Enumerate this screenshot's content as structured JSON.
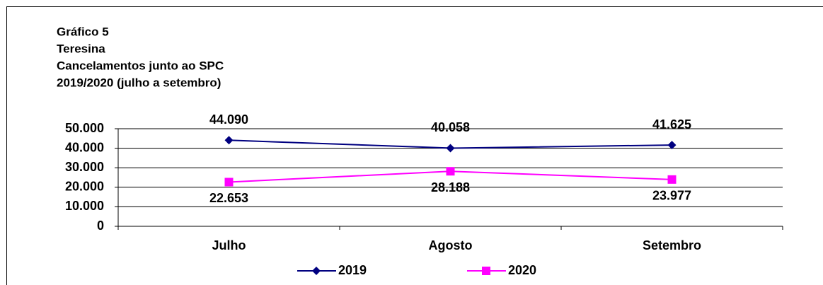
{
  "chart_data": {
    "type": "line",
    "title_lines": [
      "Gráfico 5",
      "Teresina",
      "Cancelamentos junto ao SPC",
      "2019/2020 (julho a setembro)"
    ],
    "categories": [
      "Julho",
      "Agosto",
      "Setembro"
    ],
    "series": [
      {
        "name": "2019",
        "color": "#000080",
        "marker": "diamond",
        "values": [
          44090,
          40058,
          41625
        ],
        "value_labels": [
          "44.090",
          "40.058",
          "41.625"
        ],
        "label_position": "above"
      },
      {
        "name": "2020",
        "color": "#ff00ff",
        "marker": "square",
        "values": [
          22653,
          28188,
          23977
        ],
        "value_labels": [
          "22.653",
          "28.188",
          "23.977"
        ],
        "label_position": "below"
      }
    ],
    "ylim": [
      0,
      50000
    ],
    "yticks": [
      0,
      {
        "value": 10000,
        "label": "10.000"
      },
      {
        "value": 20000,
        "label": "20.000"
      },
      {
        "value": 30000,
        "label": "30.000"
      },
      {
        "value": 40000,
        "label": "40.000"
      },
      {
        "value": 50000,
        "label": "50.000"
      }
    ],
    "grid": true,
    "legend": "bottom"
  }
}
